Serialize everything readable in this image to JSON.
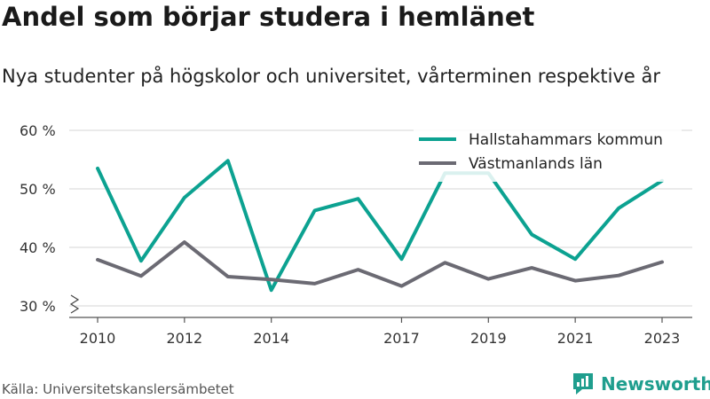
{
  "title": "Andel som börjar studera i hemlänet",
  "subtitle": "Nya studenter på högskolor och universitet, vårterminen respektive år",
  "source": "Källa: Universitetskanslersämbetet",
  "brand": {
    "name": "Newsworthy",
    "icon": "newsworthy-logo-icon",
    "color": "#1f9e8e"
  },
  "chart_data": {
    "type": "line",
    "x": [
      2010,
      2011,
      2012,
      2013,
      2014,
      2015,
      2016,
      2017,
      2018,
      2019,
      2020,
      2021,
      2022,
      2023
    ],
    "x_tick_labels": [
      "2010",
      "2012",
      "2014",
      "2017",
      "2019",
      "2021",
      "2023"
    ],
    "y_ticks": [
      30,
      40,
      50,
      60
    ],
    "y_tick_labels": [
      "30 %",
      "40 %",
      "50 %",
      "60 %"
    ],
    "ylim": [
      30,
      60
    ],
    "y_axis_break": true,
    "grid": true,
    "legend_position": "top-right",
    "series": [
      {
        "name": "Hallstahammars kommun",
        "color": "#0ca291",
        "values": [
          53.5,
          37.7,
          48.5,
          54.8,
          32.7,
          46.3,
          48.3,
          38.0,
          52.7,
          52.7,
          42.2,
          38.0,
          46.7,
          51.4
        ]
      },
      {
        "name": "Västmanlands län",
        "color": "#6b6a73",
        "values": [
          37.9,
          35.1,
          40.9,
          35.0,
          34.5,
          33.8,
          36.2,
          33.4,
          37.4,
          34.6,
          36.5,
          34.3,
          35.2,
          37.5
        ]
      }
    ]
  }
}
